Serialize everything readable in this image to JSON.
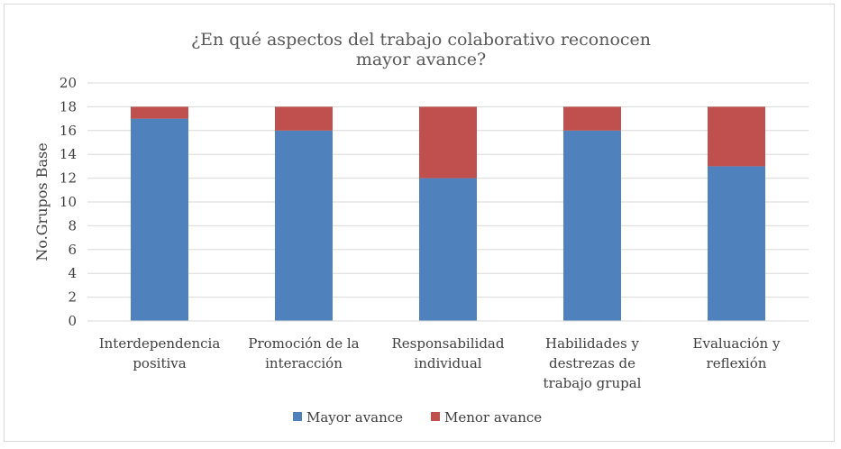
{
  "chart_data": {
    "type": "bar",
    "stacked": true,
    "title_lines": [
      "¿En qué aspectos del trabajo colaborativo reconocen",
      "mayor avance?"
    ],
    "ylabel": "No.Grupos Base",
    "xlabel": "",
    "ylim": [
      0,
      20
    ],
    "yticks": [
      0,
      2,
      4,
      6,
      8,
      10,
      12,
      14,
      16,
      18,
      20
    ],
    "grid": true,
    "legend_position": "bottom",
    "categories": [
      [
        "Interdependencia",
        "positiva"
      ],
      [
        "Promoción de la",
        "interacción"
      ],
      [
        "Responsabilidad",
        "individual"
      ],
      [
        "Habilidades y",
        "destrezas de",
        "trabajo grupal"
      ],
      [
        "Evaluación y",
        "reflexión"
      ]
    ],
    "series": [
      {
        "name": "Mayor avance",
        "color": "#4f81bd",
        "values": [
          17,
          16,
          12,
          16,
          13
        ]
      },
      {
        "name": "Menor avance",
        "color": "#c0504d",
        "values": [
          1,
          2,
          6,
          2,
          5
        ]
      }
    ]
  }
}
